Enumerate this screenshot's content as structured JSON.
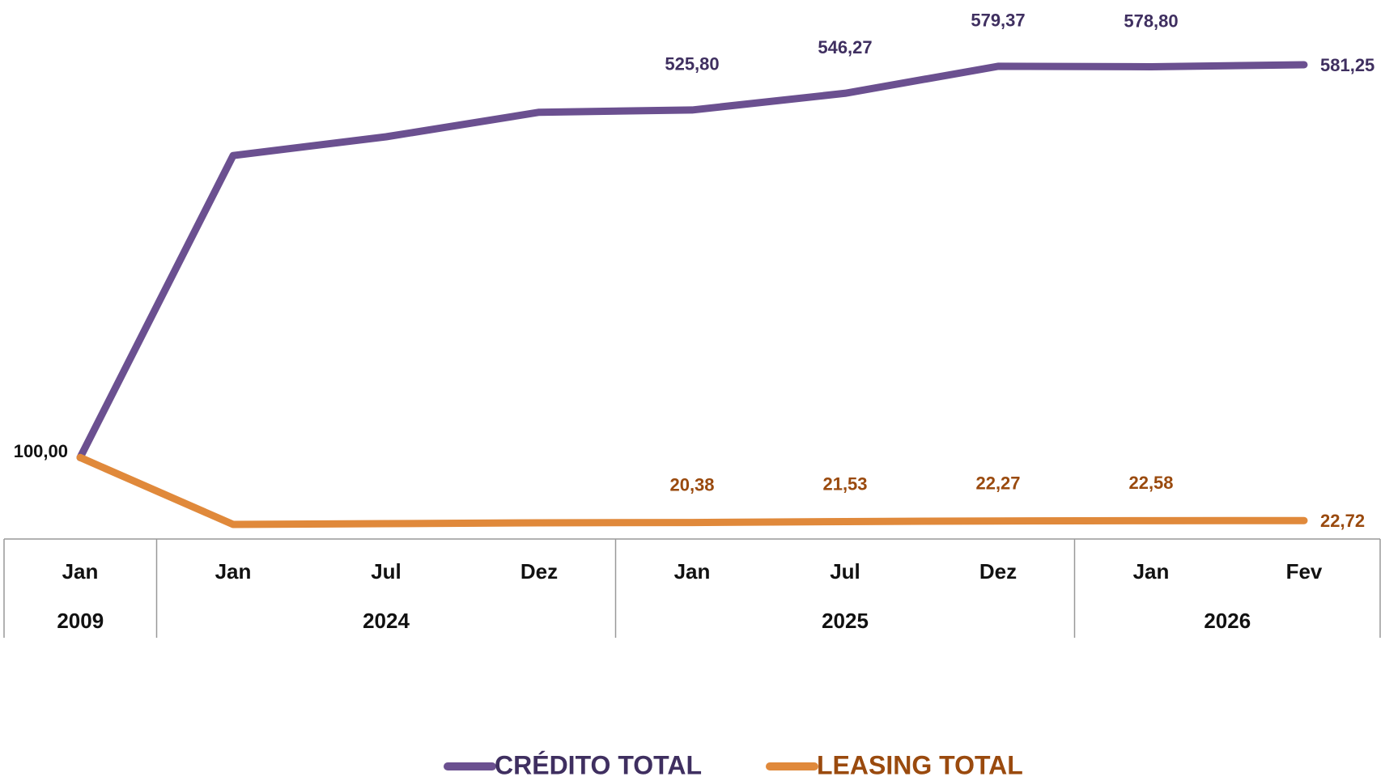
{
  "chart_data": {
    "type": "line",
    "category_groups": [
      {
        "label": "2009",
        "categories": [
          "Jan"
        ]
      },
      {
        "label": "2024",
        "categories": [
          "Jan",
          "Jul",
          "Dez"
        ]
      },
      {
        "label": "2025",
        "categories": [
          "Jan",
          "Jul",
          "Dez"
        ]
      },
      {
        "label": "2026",
        "categories": [
          "Jan",
          "Fev"
        ]
      }
    ],
    "series": [
      {
        "name": "CRÉDITO TOTAL",
        "color": "#6b5090",
        "label_color": "#3f2f60",
        "values": [
          100,
          470,
          493,
          523,
          525.8,
          546.27,
          579.37,
          578.8,
          581.25
        ],
        "value_labels": [
          "100,00",
          null,
          null,
          null,
          "525,80",
          "546,27",
          "579,37",
          "578,80",
          "581,25"
        ]
      },
      {
        "name": "LEASING TOTAL",
        "color": "#e0893b",
        "label_color": "#9a4a0e",
        "values": [
          100,
          18,
          19,
          20,
          20.38,
          21.53,
          22.27,
          22.58,
          22.72
        ],
        "value_labels": [
          null,
          null,
          null,
          null,
          "20,38",
          "21,53",
          "22,27",
          "22,58",
          "22,72"
        ]
      }
    ]
  }
}
